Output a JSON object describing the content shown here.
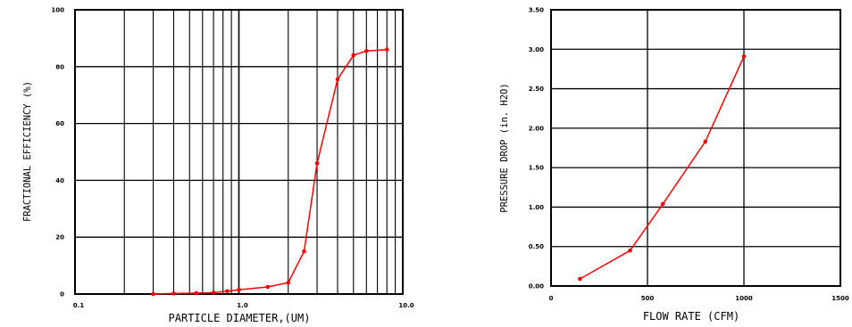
{
  "chart_data": [
    {
      "type": "line",
      "title": "",
      "xlabel": "PARTICLE DIAMETER,(UM)",
      "ylabel": "FRACTIONAL EFFICIENCY (%)",
      "xscale": "log",
      "xlim": [
        0.1,
        10.0
      ],
      "ylim": [
        0,
        100
      ],
      "grid": true,
      "x_ticks": [
        "0.1",
        "1.0",
        "10.0"
      ],
      "y_ticks": [
        "0",
        "20",
        "40",
        "60",
        "80",
        "100"
      ],
      "series": [
        {
          "color": "#ff0000",
          "x": [
            0.3,
            0.4,
            0.55,
            0.7,
            0.85,
            1.0,
            1.5,
            2.0,
            2.5,
            3.0,
            4.0,
            5.0,
            6.0,
            8.0
          ],
          "y": [
            0,
            0.2,
            0.3,
            0.5,
            1.0,
            1.5,
            2.5,
            4.0,
            15.0,
            46.0,
            75.5,
            84.0,
            85.5,
            86.0
          ]
        }
      ]
    },
    {
      "type": "line",
      "title": "",
      "xlabel": "FLOW RATE (CFM)",
      "ylabel": "PRESSURE DROP (in. H2O)",
      "xlim": [
        0,
        1500
      ],
      "ylim": [
        0,
        3.5
      ],
      "grid": true,
      "x_ticks": [
        "0",
        "500",
        "1000",
        "1500"
      ],
      "y_ticks": [
        "0.00",
        "0.50",
        "1.00",
        "1.50",
        "2.00",
        "2.50",
        "3.00",
        "3.50"
      ],
      "series": [
        {
          "color": "#ff0000",
          "x": [
            150,
            410,
            580,
            800,
            1000
          ],
          "y": [
            0.09,
            0.45,
            1.04,
            1.83,
            2.91
          ]
        }
      ]
    }
  ]
}
